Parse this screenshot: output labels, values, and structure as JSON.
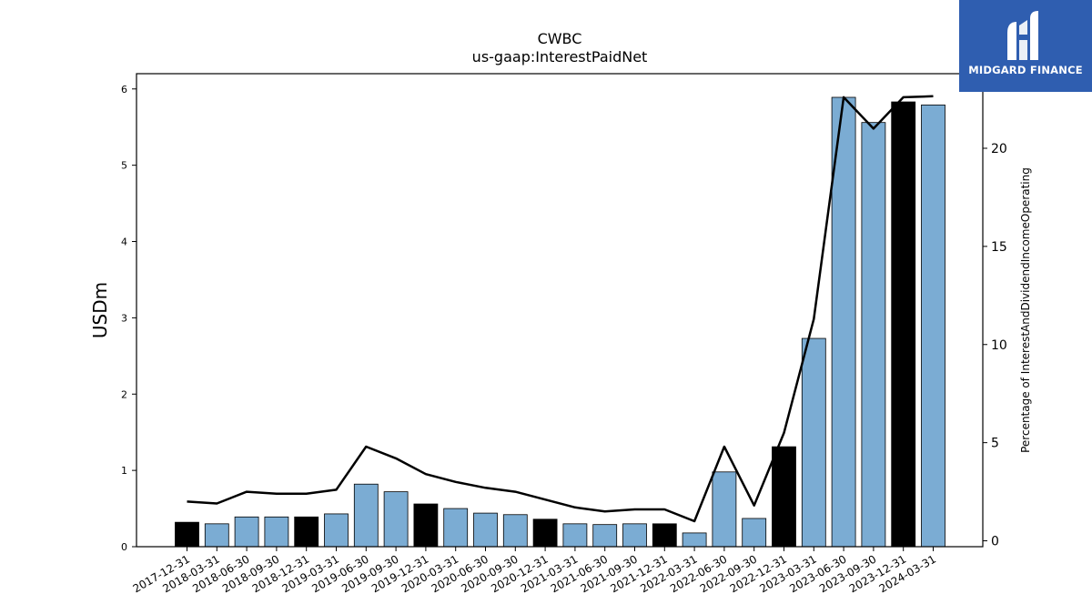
{
  "chart_data": {
    "type": "bar",
    "title": "CWBC",
    "subtitle": "us-gaap:InterestPaidNet",
    "ylabel": "USDm",
    "y2label": "Percentage of InterestAndDividendIncomeOperating",
    "ylim": [
      0,
      6.2
    ],
    "y2lim": [
      -0.3,
      23.8
    ],
    "yticks": [
      0,
      1,
      2,
      3,
      4,
      5,
      6
    ],
    "y2ticks": [
      0,
      5,
      10,
      15,
      20
    ],
    "categories": [
      "2017-12-31",
      "2018-03-31",
      "2018-06-30",
      "2018-09-30",
      "2018-12-31",
      "2019-03-31",
      "2019-06-30",
      "2019-09-30",
      "2019-12-31",
      "2020-03-31",
      "2020-06-30",
      "2020-09-30",
      "2020-12-31",
      "2021-03-31",
      "2021-06-30",
      "2021-09-30",
      "2021-12-31",
      "2022-03-31",
      "2022-06-30",
      "2022-09-30",
      "2022-12-31",
      "2023-03-31",
      "2023-06-30",
      "2023-09-30",
      "2023-12-31",
      "2024-03-31"
    ],
    "series": [
      {
        "kind": "bar",
        "values": [
          0.32,
          0.3,
          0.39,
          0.39,
          0.39,
          0.43,
          0.82,
          0.72,
          0.56,
          0.5,
          0.44,
          0.42,
          0.36,
          0.3,
          0.29,
          0.3,
          0.3,
          0.18,
          0.98,
          0.37,
          1.31,
          2.73,
          5.89,
          5.56,
          5.83,
          5.79
        ],
        "colors": [
          "#000000",
          "#7bacd3",
          "#7bacd3",
          "#7bacd3",
          "#000000",
          "#7bacd3",
          "#7bacd3",
          "#7bacd3",
          "#000000",
          "#7bacd3",
          "#7bacd3",
          "#7bacd3",
          "#000000",
          "#7bacd3",
          "#7bacd3",
          "#7bacd3",
          "#000000",
          "#7bacd3",
          "#7bacd3",
          "#7bacd3",
          "#000000",
          "#7bacd3",
          "#7bacd3",
          "#7bacd3",
          "#000000",
          "#7bacd3"
        ]
      },
      {
        "kind": "line",
        "axis": "right",
        "color": "#000000",
        "values": [
          2.0,
          1.9,
          2.5,
          2.4,
          2.4,
          2.6,
          4.8,
          4.2,
          3.4,
          3.0,
          2.7,
          2.5,
          2.1,
          1.7,
          1.5,
          1.6,
          1.6,
          1.0,
          4.8,
          1.8,
          5.5,
          11.3,
          22.6,
          21.0,
          22.6,
          22.65
        ]
      }
    ],
    "grid": false,
    "legend": "none"
  },
  "logo": {
    "text": "MIDGARD FINANCE",
    "color": "#2f5eb0"
  }
}
